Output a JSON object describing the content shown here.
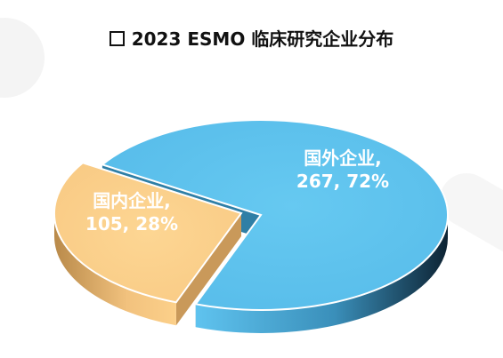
{
  "title": "2023 ESMO 临床研究企业分布",
  "chart_data": {
    "type": "pie",
    "title": "2023 ESMO 临床研究企业分布",
    "slices": [
      {
        "name": "国外企业",
        "value": 267,
        "percent": 72,
        "label_line1": "国外企业,",
        "label_line2": "267, 72%",
        "color": "#5bc1ec"
      },
      {
        "name": "国内企业",
        "value": 105,
        "percent": 28,
        "label_line1": "国内企业,",
        "label_line2": "105, 28%",
        "color": "#fcd08a"
      }
    ],
    "style": "3d-exploded"
  }
}
